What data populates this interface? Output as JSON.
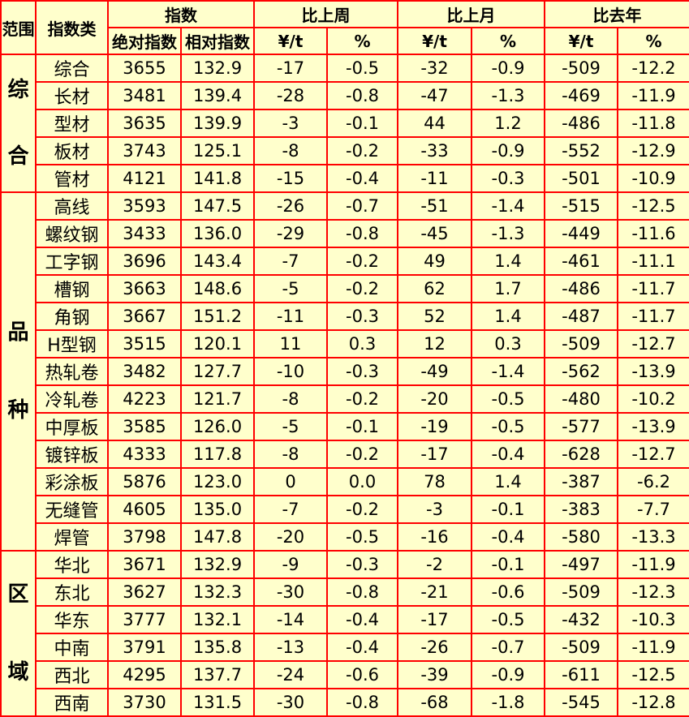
{
  "colors": {
    "background": "#FFFFCC",
    "border": "#FF0000",
    "text": "#000000"
  },
  "table": {
    "header": {
      "scope": "范围",
      "index_type": "指数类",
      "groups": [
        {
          "label": "指数",
          "cols": [
            "绝对指数",
            "相对指数"
          ]
        },
        {
          "label": "比上周",
          "cols": [
            "¥/t",
            "%"
          ]
        },
        {
          "label": "比上月",
          "cols": [
            "¥/t",
            "%"
          ]
        },
        {
          "label": "比去年",
          "cols": [
            "¥/t",
            "%"
          ]
        }
      ]
    }
  },
  "chart_data": {
    "type": "table",
    "columns": [
      "范围",
      "指数类",
      "绝对指数",
      "相对指数",
      "比上周 ¥/t",
      "比上周 %",
      "比上月 ¥/t",
      "比上月 %",
      "比去年 ¥/t",
      "比去年 %"
    ],
    "sections": [
      {
        "scope": "综合",
        "chars": [
          "综",
          "合"
        ],
        "rows": [
          {
            "label": "综合",
            "values": [
              "3655",
              "132.9",
              "-17",
              "-0.5",
              "-32",
              "-0.9",
              "-509",
              "-12.2"
            ]
          },
          {
            "label": "长材",
            "values": [
              "3481",
              "139.4",
              "-28",
              "-0.8",
              "-47",
              "-1.3",
              "-469",
              "-11.9"
            ]
          },
          {
            "label": "型材",
            "values": [
              "3635",
              "139.9",
              "-3",
              "-0.1",
              "44",
              "1.2",
              "-486",
              "-11.8"
            ]
          },
          {
            "label": "板材",
            "values": [
              "3743",
              "125.1",
              "-8",
              "-0.2",
              "-33",
              "-0.9",
              "-552",
              "-12.9"
            ]
          },
          {
            "label": "管材",
            "values": [
              "4121",
              "141.8",
              "-15",
              "-0.4",
              "-11",
              "-0.3",
              "-501",
              "-10.9"
            ]
          }
        ]
      },
      {
        "scope": "品种",
        "chars": [
          "品",
          "种"
        ],
        "rows": [
          {
            "label": "高线",
            "values": [
              "3593",
              "147.5",
              "-26",
              "-0.7",
              "-51",
              "-1.4",
              "-515",
              "-12.5"
            ]
          },
          {
            "label": "螺纹钢",
            "values": [
              "3433",
              "136.0",
              "-29",
              "-0.8",
              "-45",
              "-1.3",
              "-449",
              "-11.6"
            ]
          },
          {
            "label": "工字钢",
            "values": [
              "3696",
              "143.4",
              "-7",
              "-0.2",
              "49",
              "1.4",
              "-461",
              "-11.1"
            ]
          },
          {
            "label": "槽钢",
            "values": [
              "3663",
              "148.6",
              "-5",
              "-0.2",
              "62",
              "1.7",
              "-486",
              "-11.7"
            ]
          },
          {
            "label": "角钢",
            "values": [
              "3667",
              "151.2",
              "-11",
              "-0.3",
              "52",
              "1.4",
              "-487",
              "-11.7"
            ]
          },
          {
            "label": "H型钢",
            "values": [
              "3515",
              "120.1",
              "11",
              "0.3",
              "12",
              "0.3",
              "-509",
              "-12.7"
            ]
          },
          {
            "label": "热轧卷",
            "values": [
              "3482",
              "127.7",
              "-10",
              "-0.3",
              "-49",
              "-1.4",
              "-562",
              "-13.9"
            ]
          },
          {
            "label": "冷轧卷",
            "values": [
              "4223",
              "121.7",
              "-8",
              "-0.2",
              "-20",
              "-0.5",
              "-480",
              "-10.2"
            ]
          },
          {
            "label": "中厚板",
            "values": [
              "3585",
              "126.0",
              "-5",
              "-0.1",
              "-19",
              "-0.5",
              "-577",
              "-13.9"
            ]
          },
          {
            "label": "镀锌板",
            "values": [
              "4333",
              "117.8",
              "-8",
              "-0.2",
              "-17",
              "-0.4",
              "-628",
              "-12.7"
            ]
          },
          {
            "label": "彩涂板",
            "values": [
              "5876",
              "123.0",
              "0",
              "0.0",
              "78",
              "1.4",
              "-387",
              "-6.2"
            ]
          },
          {
            "label": "无缝管",
            "values": [
              "4605",
              "135.0",
              "-7",
              "-0.2",
              "-3",
              "-0.1",
              "-383",
              "-7.7"
            ]
          },
          {
            "label": "焊管",
            "values": [
              "3798",
              "147.8",
              "-20",
              "-0.5",
              "-16",
              "-0.4",
              "-580",
              "-13.3"
            ]
          }
        ]
      },
      {
        "scope": "区域",
        "chars": [
          "区",
          "域"
        ],
        "rows": [
          {
            "label": "华北",
            "values": [
              "3671",
              "132.9",
              "-9",
              "-0.3",
              "-2",
              "-0.1",
              "-497",
              "-11.9"
            ]
          },
          {
            "label": "东北",
            "values": [
              "3627",
              "132.3",
              "-30",
              "-0.8",
              "-21",
              "-0.6",
              "-509",
              "-12.3"
            ]
          },
          {
            "label": "华东",
            "values": [
              "3777",
              "132.1",
              "-14",
              "-0.4",
              "-17",
              "-0.5",
              "-432",
              "-10.3"
            ]
          },
          {
            "label": "中南",
            "values": [
              "3791",
              "135.8",
              "-13",
              "-0.4",
              "-26",
              "-0.7",
              "-509",
              "-11.9"
            ]
          },
          {
            "label": "西北",
            "values": [
              "4295",
              "137.7",
              "-24",
              "-0.6",
              "-39",
              "-0.9",
              "-611",
              "-12.5"
            ]
          },
          {
            "label": "西南",
            "values": [
              "3730",
              "131.5",
              "-30",
              "-0.8",
              "-68",
              "-1.8",
              "-545",
              "-12.8"
            ]
          }
        ]
      }
    ]
  }
}
